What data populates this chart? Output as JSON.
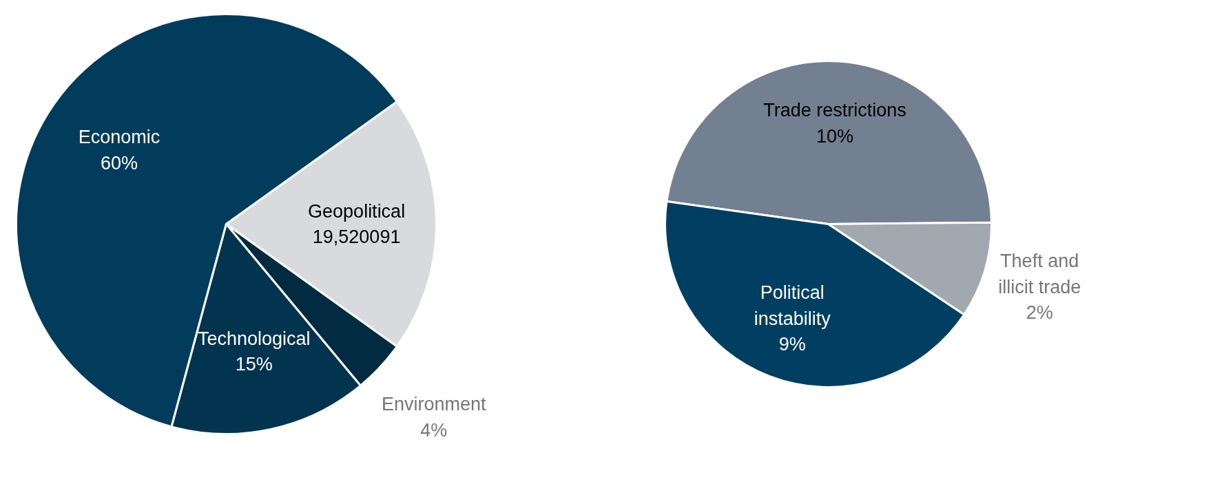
{
  "chart_data": [
    {
      "type": "pie",
      "categories": [
        "Economic",
        "Geopolitical",
        "Environment",
        "Technological"
      ],
      "values": [
        60,
        19.520091,
        4,
        15
      ],
      "value_labels": [
        "60%",
        "19,520091",
        "4%",
        "15%"
      ],
      "colors": [
        "#013c5c",
        "#d9dadd",
        "#022b42",
        "#03344f"
      ]
    },
    {
      "type": "pie",
      "categories": [
        "Trade restrictions",
        "Theft and illicit trade",
        "Political instability"
      ],
      "values": [
        10,
        2,
        9
      ],
      "value_labels": [
        "10%",
        "2%",
        "9%"
      ],
      "colors": [
        "#738091",
        "#a2a8b0",
        "#003f62"
      ]
    }
  ]
}
